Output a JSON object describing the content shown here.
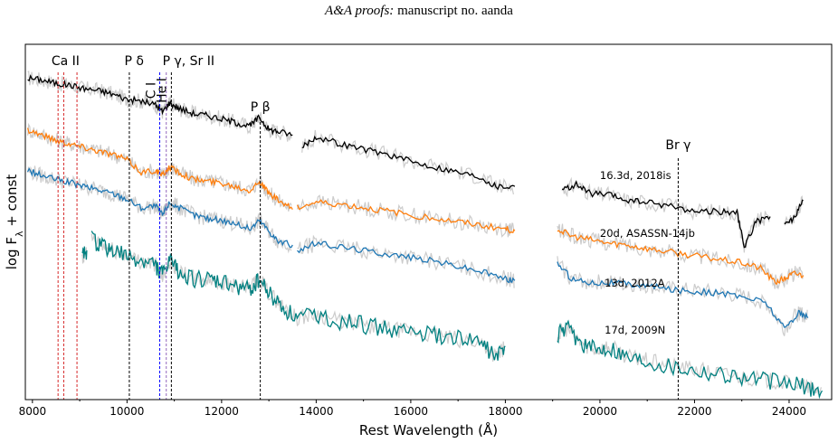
{
  "header": {
    "journal_italic": "A&A proofs:",
    "rest": " manuscript no. aanda"
  },
  "chart_data": {
    "type": "line",
    "xlabel": "Rest Wavelength (Å)",
    "ylabel": "log F_λ + const",
    "xlim": [
      7850,
      24900
    ],
    "ylim": [
      0,
      1
    ],
    "xticks": [
      8000,
      10000,
      12000,
      14000,
      16000,
      18000,
      20000,
      22000,
      24000
    ],
    "grid": false,
    "line_markers": [
      {
        "label": "Ca II",
        "x": [
          8542,
          8662,
          8942
        ],
        "color": "#d62728"
      },
      {
        "label": "P δ",
        "x": [
          10049
        ],
        "color": "#000000"
      },
      {
        "label": "C I",
        "x": [
          10691
        ],
        "color": "#0000ff"
      },
      {
        "label": "He I",
        "x": [
          10830
        ],
        "color": "#9467bd"
      },
      {
        "label": "P γ, Sr II",
        "x": [
          10938
        ],
        "color": "#000000"
      },
      {
        "label": "P β",
        "x": [
          12818
        ],
        "color": "#000000"
      },
      {
        "label": "Br γ",
        "x": [
          21655
        ],
        "color": "#000000"
      }
    ],
    "series": [
      {
        "name": "16.3d, 2018is",
        "color": "#000000",
        "segments": [
          {
            "x": [
              7900,
              8200,
              8500,
              8800,
              9100,
              9400,
              9700,
              10000,
              10300,
              10600,
              10750,
              10900,
              11100,
              11400,
              11700,
              12000,
              12300,
              12600,
              12800,
              13000,
              13200,
              13500
            ],
            "y": [
              0.905,
              0.9,
              0.89,
              0.885,
              0.875,
              0.87,
              0.86,
              0.845,
              0.84,
              0.83,
              0.81,
              0.835,
              0.82,
              0.805,
              0.8,
              0.79,
              0.78,
              0.77,
              0.795,
              0.76,
              0.755,
              0.745
            ]
          },
          {
            "x": [
              13700,
              14000,
              14500,
              15000,
              15500,
              16000,
              16500,
              17000,
              17500,
              17800,
              18200
            ],
            "y": [
              0.71,
              0.74,
              0.72,
              0.705,
              0.69,
              0.67,
              0.655,
              0.64,
              0.625,
              0.6,
              0.6
            ]
          },
          {
            "x": [
              19200,
              19500,
              19800,
              20200,
              20600,
              21000,
              21500,
              22000,
              22500,
              22900,
              23050,
              23300,
              23600
            ],
            "y": [
              0.59,
              0.605,
              0.58,
              0.575,
              0.56,
              0.555,
              0.545,
              0.53,
              0.53,
              0.525,
              0.43,
              0.5,
              0.515
            ]
          },
          {
            "x": [
              23900,
              24100,
              24300
            ],
            "y": [
              0.49,
              0.51,
              0.56
            ]
          }
        ]
      },
      {
        "name": "20d, ASASSN-14jb",
        "color": "#ff7f0e",
        "segments": [
          {
            "x": [
              7900,
              8200,
              8500,
              8800,
              9100,
              9400,
              9700,
              10000,
              10300,
              10600,
              10750,
              10900,
              11100,
              11400,
              11700,
              12000,
              12300,
              12600,
              12800,
              13000,
              13200,
              13500
            ],
            "y": [
              0.76,
              0.745,
              0.73,
              0.72,
              0.71,
              0.7,
              0.69,
              0.675,
              0.64,
              0.645,
              0.63,
              0.655,
              0.64,
              0.62,
              0.615,
              0.61,
              0.6,
              0.59,
              0.615,
              0.58,
              0.56,
              0.535
            ]
          },
          {
            "x": [
              13600,
              14000,
              14500,
              15000,
              15500,
              16000,
              16500,
              17000,
              17500,
              18000,
              18200
            ],
            "y": [
              0.54,
              0.555,
              0.55,
              0.54,
              0.53,
              0.52,
              0.51,
              0.5,
              0.49,
              0.48,
              0.475
            ]
          },
          {
            "x": [
              19100,
              19400,
              19800,
              20200,
              20600,
              21000,
              21500,
              22000,
              22500,
              23000,
              23400,
              23700,
              23900,
              24100,
              24300
            ],
            "y": [
              0.48,
              0.46,
              0.45,
              0.44,
              0.435,
              0.425,
              0.415,
              0.405,
              0.395,
              0.385,
              0.37,
              0.33,
              0.34,
              0.355,
              0.35
            ]
          }
        ]
      },
      {
        "name": "13d, 2012A",
        "color": "#1f77b4",
        "segments": [
          {
            "x": [
              7900,
              8200,
              8500,
              8800,
              9100,
              9400,
              9700,
              10000,
              10300,
              10600,
              10750,
              10900,
              11100,
              11400,
              11700,
              12000,
              12300,
              12600,
              12800,
              13000,
              13200,
              13500
            ],
            "y": [
              0.645,
              0.63,
              0.62,
              0.61,
              0.6,
              0.59,
              0.58,
              0.565,
              0.54,
              0.545,
              0.52,
              0.555,
              0.54,
              0.52,
              0.51,
              0.505,
              0.495,
              0.48,
              0.505,
              0.475,
              0.445,
              0.435
            ]
          },
          {
            "x": [
              13600,
              14000,
              14500,
              15000,
              15500,
              16000,
              16500,
              17000,
              17500,
              18000,
              18200
            ],
            "y": [
              0.42,
              0.44,
              0.43,
              0.42,
              0.41,
              0.4,
              0.39,
              0.375,
              0.36,
              0.34,
              0.335
            ]
          },
          {
            "x": [
              19100,
              19400,
              19800,
              20200,
              20600,
              21000,
              21500,
              22000,
              22500,
              23000,
              23500,
              23900,
              24200,
              24400
            ],
            "y": [
              0.385,
              0.34,
              0.33,
              0.33,
              0.325,
              0.32,
              0.31,
              0.305,
              0.3,
              0.29,
              0.275,
              0.2,
              0.245,
              0.23
            ]
          }
        ]
      },
      {
        "name": "17d, 2009N",
        "color": "#008080",
        "segments": [
          {
            "x": [
              9050,
              9150
            ],
            "y": [
              0.4,
              0.42
            ]
          },
          {
            "x": [
              9250,
              9500,
              9700,
              10000,
              10300,
              10600,
              10750,
              10900,
              11100,
              11400,
              11700,
              12000,
              12300,
              12600,
              12800,
              13000,
              13300,
              13600,
              14000,
              14500,
              15000,
              15500,
              16000,
              16500,
              17000,
              17500,
              17800,
              18000
            ],
            "y": [
              0.45,
              0.43,
              0.42,
              0.4,
              0.39,
              0.38,
              0.35,
              0.39,
              0.36,
              0.34,
              0.335,
              0.33,
              0.32,
              0.31,
              0.34,
              0.3,
              0.26,
              0.23,
              0.24,
              0.22,
              0.21,
              0.2,
              0.19,
              0.18,
              0.17,
              0.16,
              0.12,
              0.15
            ]
          },
          {
            "x": [
              19100,
              19300,
              19600,
              19900,
              20200,
              20600,
              21000,
              21500,
              22000,
              22500,
              23000,
              23500,
              24000,
              24400,
              24700
            ],
            "y": [
              0.18,
              0.2,
              0.16,
              0.14,
              0.15,
              0.12,
              0.11,
              0.095,
              0.085,
              0.075,
              0.065,
              0.055,
              0.045,
              0.035,
              0.025
            ]
          }
        ]
      }
    ]
  }
}
